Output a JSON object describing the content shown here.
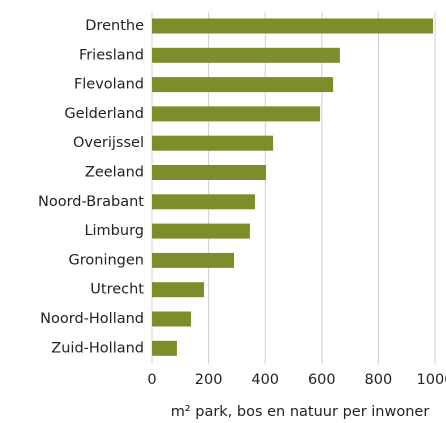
{
  "chart_data": {
    "type": "hbar",
    "categories": [
      "Drenthe",
      "Friesland",
      "Flevoland",
      "Gelderland",
      "Overijssel",
      "Zeeland",
      "Noord-Brabant",
      "Limburg",
      "Groningen",
      "Utrecht",
      "Noord-Holland",
      "Zuid-Holland"
    ],
    "values": [
      993,
      664,
      640,
      594,
      428,
      403,
      364,
      346,
      290,
      184,
      138,
      88
    ],
    "color": "#7f8c2a",
    "xlabel": "m² park, bos en natuur per inwoner",
    "xlim": [
      0,
      1000
    ],
    "xticks": [
      0,
      200,
      400,
      600,
      800,
      1000
    ],
    "grid": true
  }
}
